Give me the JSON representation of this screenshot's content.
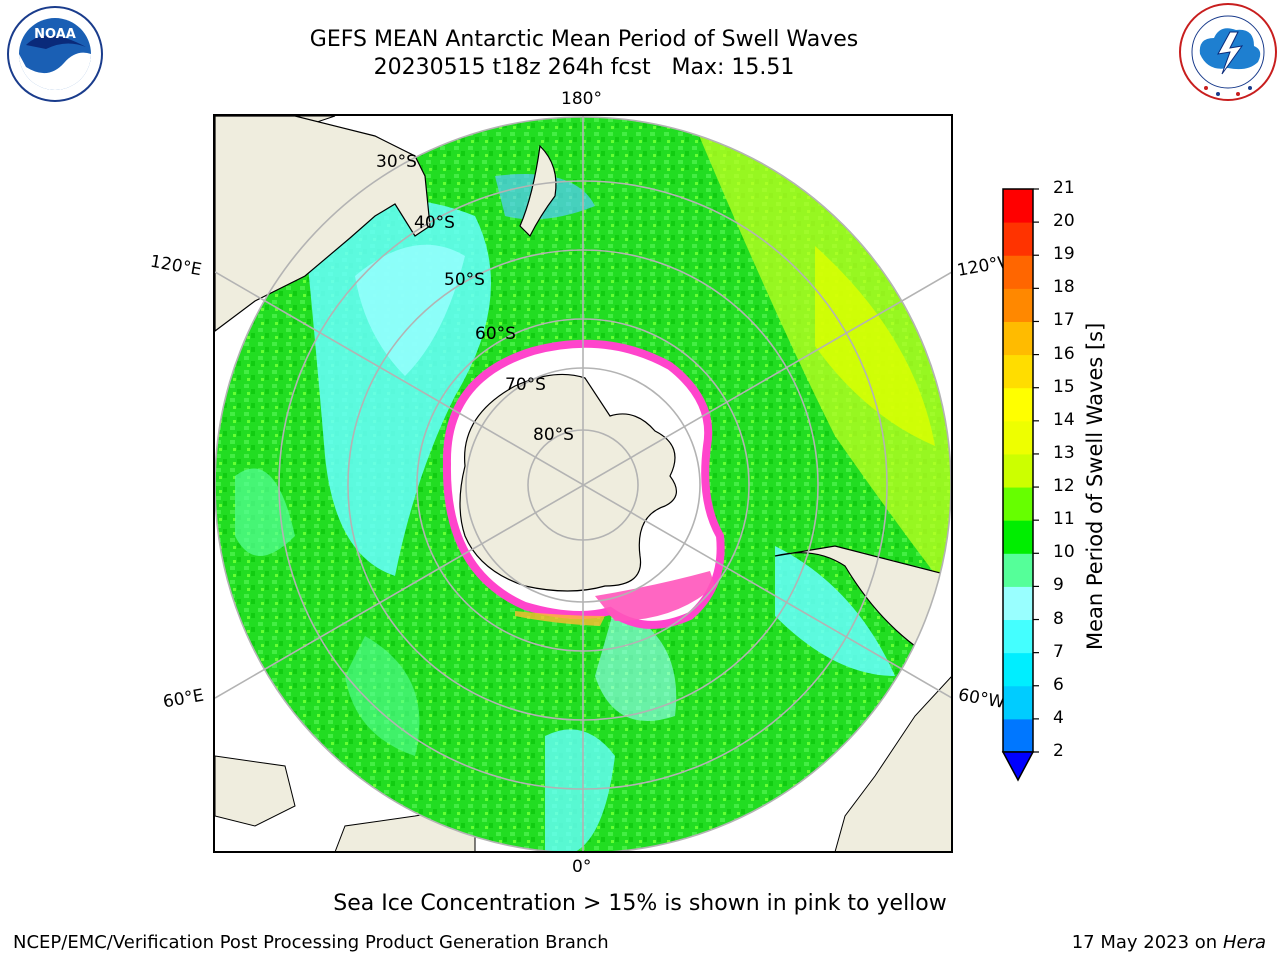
{
  "header": {
    "title_line1": "GEFS MEAN Antarctic Mean Period of Swell Waves",
    "title_line2": "20230515 t18z 264h fcst   Max: 15.51"
  },
  "logos": {
    "noaa": {
      "text": "NOAA",
      "ring_text": "NATIONAL OCEANIC AND ATMOSPHERIC ADMINISTRATION · U.S. DEPARTMENT OF COMMERCE"
    },
    "nws": {
      "ring_text": "NATIONAL WEATHER SERVICE"
    }
  },
  "map": {
    "projection": "south-polar-stereographic",
    "lon_labels": {
      "top": "180°",
      "bottom": "0°",
      "left_upper": "120°E",
      "right_upper": "120°W",
      "left_lower": "60°E",
      "right_lower": "60°W"
    },
    "lat_labels": [
      "30°S",
      "40°S",
      "50°S",
      "60°S",
      "70°S",
      "80°S"
    ]
  },
  "colorbar": {
    "title": "Mean Period of Swell Waves [s]",
    "ticks": [
      "2",
      "4",
      "6",
      "7",
      "8",
      "9",
      "10",
      "11",
      "12",
      "13",
      "14",
      "15",
      "16",
      "17",
      "18",
      "19",
      "20",
      "21"
    ],
    "colors": [
      "#0000ff",
      "#0077ff",
      "#00ccff",
      "#00eeff",
      "#44ffff",
      "#99ffff",
      "#55ff99",
      "#00ee00",
      "#66ff00",
      "#ccff00",
      "#eeff00",
      "#ffff00",
      "#ffdd00",
      "#ffbb00",
      "#ff8800",
      "#ff6600",
      "#ff3300",
      "#ff0000"
    ]
  },
  "footer": {
    "note": "Sea Ice Concentration > 15% is shown in pink to yellow",
    "credit": "NCEP/EMC/Verification Post Processing Product Generation Branch",
    "date": "17 May 2023 on",
    "host": "Hera"
  }
}
